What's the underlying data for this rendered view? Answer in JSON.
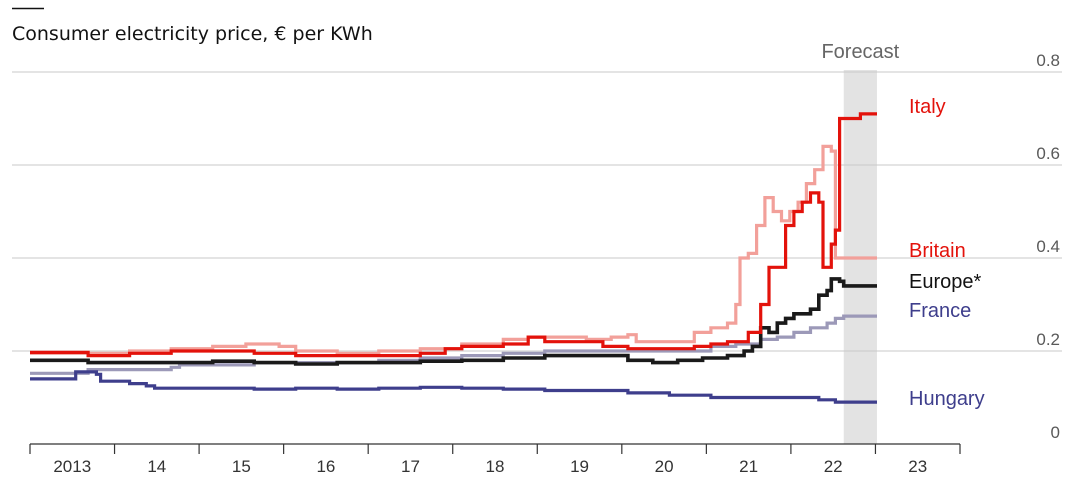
{
  "chart_data": {
    "type": "line",
    "title": "Consumer electricity price, € per KWh",
    "xlabel": "",
    "ylabel": "",
    "x_range": [
      2012.8,
      2024.0
    ],
    "ylim": [
      0,
      0.8
    ],
    "y_ticks": [
      {
        "value": 0,
        "label": "0"
      },
      {
        "value": 0.2,
        "label": "0.2"
      },
      {
        "value": 0.4,
        "label": "0.4"
      },
      {
        "value": 0.6,
        "label": "0.6"
      },
      {
        "value": 0.8,
        "label": "0.8"
      }
    ],
    "x_ticks": [
      {
        "value": 2013,
        "label": "2013"
      },
      {
        "value": 2014,
        "label": "14"
      },
      {
        "value": 2015,
        "label": "15"
      },
      {
        "value": 2016,
        "label": "16"
      },
      {
        "value": 2017,
        "label": "17"
      },
      {
        "value": 2018,
        "label": "18"
      },
      {
        "value": 2019,
        "label": "19"
      },
      {
        "value": 2020,
        "label": "20"
      },
      {
        "value": 2021,
        "label": "21"
      },
      {
        "value": 2022,
        "label": "22"
      },
      {
        "value": 2023,
        "label": "23"
      }
    ],
    "grid": true,
    "forecast": {
      "label": "Forecast",
      "start": 2022.6,
      "end": 2023.0
    },
    "series": [
      {
        "name": "Britain",
        "color": "#f2a09a",
        "label_color": "#e3120b",
        "label_value": 0.4,
        "points": [
          [
            2012.8,
            0.195
          ],
          [
            2013.5,
            0.195
          ],
          [
            2014.0,
            0.2
          ],
          [
            2014.5,
            0.205
          ],
          [
            2015.0,
            0.21
          ],
          [
            2015.4,
            0.215
          ],
          [
            2015.8,
            0.21
          ],
          [
            2016.0,
            0.2
          ],
          [
            2016.5,
            0.195
          ],
          [
            2017.0,
            0.2
          ],
          [
            2017.5,
            0.205
          ],
          [
            2018.0,
            0.215
          ],
          [
            2018.5,
            0.225
          ],
          [
            2018.8,
            0.23
          ],
          [
            2019.2,
            0.23
          ],
          [
            2019.5,
            0.225
          ],
          [
            2019.8,
            0.23
          ],
          [
            2020.0,
            0.235
          ],
          [
            2020.1,
            0.22
          ],
          [
            2020.5,
            0.22
          ],
          [
            2020.8,
            0.24
          ],
          [
            2021.0,
            0.25
          ],
          [
            2021.2,
            0.26
          ],
          [
            2021.3,
            0.3
          ],
          [
            2021.35,
            0.4
          ],
          [
            2021.45,
            0.41
          ],
          [
            2021.55,
            0.47
          ],
          [
            2021.65,
            0.53
          ],
          [
            2021.75,
            0.5
          ],
          [
            2021.85,
            0.48
          ],
          [
            2021.95,
            0.5
          ],
          [
            2022.05,
            0.52
          ],
          [
            2022.15,
            0.56
          ],
          [
            2022.25,
            0.59
          ],
          [
            2022.35,
            0.64
          ],
          [
            2022.45,
            0.63
          ],
          [
            2022.5,
            0.4
          ],
          [
            2022.6,
            0.4
          ],
          [
            2023.0,
            0.4
          ]
        ]
      },
      {
        "name": "Italy",
        "color": "#e3120b",
        "label_color": "#e3120b",
        "label_value": 0.71,
        "points": [
          [
            2012.8,
            0.197
          ],
          [
            2013.5,
            0.19
          ],
          [
            2014.0,
            0.195
          ],
          [
            2014.5,
            0.2
          ],
          [
            2015.0,
            0.2
          ],
          [
            2015.5,
            0.195
          ],
          [
            2016.0,
            0.19
          ],
          [
            2016.5,
            0.19
          ],
          [
            2017.0,
            0.19
          ],
          [
            2017.5,
            0.195
          ],
          [
            2017.8,
            0.205
          ],
          [
            2018.0,
            0.21
          ],
          [
            2018.5,
            0.215
          ],
          [
            2018.8,
            0.23
          ],
          [
            2019.0,
            0.22
          ],
          [
            2019.5,
            0.22
          ],
          [
            2019.7,
            0.21
          ],
          [
            2020.0,
            0.205
          ],
          [
            2020.5,
            0.205
          ],
          [
            2020.8,
            0.21
          ],
          [
            2021.0,
            0.215
          ],
          [
            2021.2,
            0.22
          ],
          [
            2021.4,
            0.22
          ],
          [
            2021.45,
            0.24
          ],
          [
            2021.55,
            0.24
          ],
          [
            2021.6,
            0.3
          ],
          [
            2021.7,
            0.38
          ],
          [
            2021.85,
            0.38
          ],
          [
            2021.9,
            0.47
          ],
          [
            2022.0,
            0.5
          ],
          [
            2022.1,
            0.52
          ],
          [
            2022.2,
            0.54
          ],
          [
            2022.3,
            0.52
          ],
          [
            2022.35,
            0.38
          ],
          [
            2022.45,
            0.43
          ],
          [
            2022.5,
            0.46
          ],
          [
            2022.55,
            0.7
          ],
          [
            2022.7,
            0.7
          ],
          [
            2022.8,
            0.71
          ],
          [
            2023.0,
            0.71
          ]
        ]
      },
      {
        "name": "Europe*",
        "color": "#1a1a1a",
        "label_color": "#121212",
        "label_value": 0.34,
        "points": [
          [
            2012.8,
            0.18
          ],
          [
            2013.5,
            0.175
          ],
          [
            2014.0,
            0.175
          ],
          [
            2014.5,
            0.175
          ],
          [
            2015.0,
            0.178
          ],
          [
            2015.5,
            0.175
          ],
          [
            2016.0,
            0.172
          ],
          [
            2016.5,
            0.175
          ],
          [
            2017.0,
            0.175
          ],
          [
            2017.5,
            0.178
          ],
          [
            2018.0,
            0.18
          ],
          [
            2018.5,
            0.185
          ],
          [
            2019.0,
            0.19
          ],
          [
            2019.5,
            0.19
          ],
          [
            2020.0,
            0.18
          ],
          [
            2020.3,
            0.175
          ],
          [
            2020.6,
            0.18
          ],
          [
            2020.9,
            0.185
          ],
          [
            2021.2,
            0.19
          ],
          [
            2021.4,
            0.2
          ],
          [
            2021.5,
            0.21
          ],
          [
            2021.6,
            0.25
          ],
          [
            2021.7,
            0.24
          ],
          [
            2021.8,
            0.26
          ],
          [
            2021.9,
            0.27
          ],
          [
            2022.0,
            0.28
          ],
          [
            2022.1,
            0.28
          ],
          [
            2022.2,
            0.29
          ],
          [
            2022.3,
            0.32
          ],
          [
            2022.4,
            0.33
          ],
          [
            2022.45,
            0.355
          ],
          [
            2022.55,
            0.35
          ],
          [
            2022.6,
            0.34
          ],
          [
            2022.8,
            0.34
          ],
          [
            2023.0,
            0.34
          ]
        ]
      },
      {
        "name": "France",
        "color": "#9c99b8",
        "label_color": "#3e3e8c",
        "label_value": 0.275,
        "points": [
          [
            2012.8,
            0.152
          ],
          [
            2013.2,
            0.152
          ],
          [
            2013.5,
            0.16
          ],
          [
            2014.0,
            0.16
          ],
          [
            2014.5,
            0.165
          ],
          [
            2014.6,
            0.17
          ],
          [
            2015.0,
            0.17
          ],
          [
            2015.5,
            0.175
          ],
          [
            2016.0,
            0.175
          ],
          [
            2016.5,
            0.175
          ],
          [
            2017.0,
            0.18
          ],
          [
            2017.5,
            0.185
          ],
          [
            2018.0,
            0.19
          ],
          [
            2018.5,
            0.195
          ],
          [
            2019.0,
            0.2
          ],
          [
            2019.5,
            0.2
          ],
          [
            2020.0,
            0.2
          ],
          [
            2020.5,
            0.2
          ],
          [
            2021.0,
            0.21
          ],
          [
            2021.3,
            0.215
          ],
          [
            2021.6,
            0.225
          ],
          [
            2021.8,
            0.23
          ],
          [
            2022.0,
            0.24
          ],
          [
            2022.2,
            0.25
          ],
          [
            2022.4,
            0.26
          ],
          [
            2022.5,
            0.27
          ],
          [
            2022.6,
            0.275
          ],
          [
            2023.0,
            0.275
          ]
        ]
      },
      {
        "name": "Hungary",
        "color": "#3e3e8c",
        "label_color": "#3e3e8c",
        "label_value": 0.09,
        "points": [
          [
            2012.8,
            0.14
          ],
          [
            2013.3,
            0.14
          ],
          [
            2013.35,
            0.155
          ],
          [
            2013.6,
            0.15
          ],
          [
            2013.65,
            0.135
          ],
          [
            2014.0,
            0.13
          ],
          [
            2014.2,
            0.125
          ],
          [
            2014.3,
            0.12
          ],
          [
            2015.0,
            0.12
          ],
          [
            2015.5,
            0.118
          ],
          [
            2016.0,
            0.12
          ],
          [
            2016.5,
            0.118
          ],
          [
            2017.0,
            0.12
          ],
          [
            2017.5,
            0.122
          ],
          [
            2018.0,
            0.12
          ],
          [
            2018.5,
            0.118
          ],
          [
            2019.0,
            0.115
          ],
          [
            2019.5,
            0.115
          ],
          [
            2020.0,
            0.11
          ],
          [
            2020.5,
            0.105
          ],
          [
            2021.0,
            0.1
          ],
          [
            2021.5,
            0.1
          ],
          [
            2022.0,
            0.1
          ],
          [
            2022.3,
            0.095
          ],
          [
            2022.5,
            0.09
          ],
          [
            2022.8,
            0.09
          ],
          [
            2023.0,
            0.09
          ]
        ]
      }
    ]
  }
}
